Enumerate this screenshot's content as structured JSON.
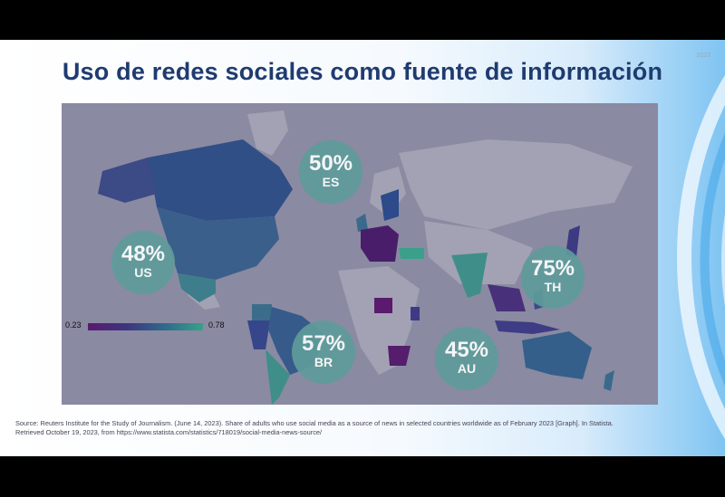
{
  "slide": {
    "title": "Uso de redes sociales como fuente de información",
    "corner_mark": "2023"
  },
  "legend": {
    "min_label": "0.23",
    "max_label": "0.78"
  },
  "callouts": [
    {
      "value": "50%",
      "code": "ES"
    },
    {
      "value": "48%",
      "code": "US"
    },
    {
      "value": "75%",
      "code": "TH"
    },
    {
      "value": "57%",
      "code": "BR"
    },
    {
      "value": "45%",
      "code": "AU"
    }
  ],
  "colors": {
    "low": "#5a1a6e",
    "high": "#3aa08a",
    "no_data": "#9898ad",
    "callout": "#5f9c9b"
  },
  "source": "Source: Reuters Institute for the Study of Journalism. (June 14, 2023). Share of adults who use social media as a source of news in selected countries worldwide as of February 2023 [Graph]. In Statista. Retrieved October 19, 2023, from https://www.statista.com/statistics/718019/social-media-news-source/"
}
